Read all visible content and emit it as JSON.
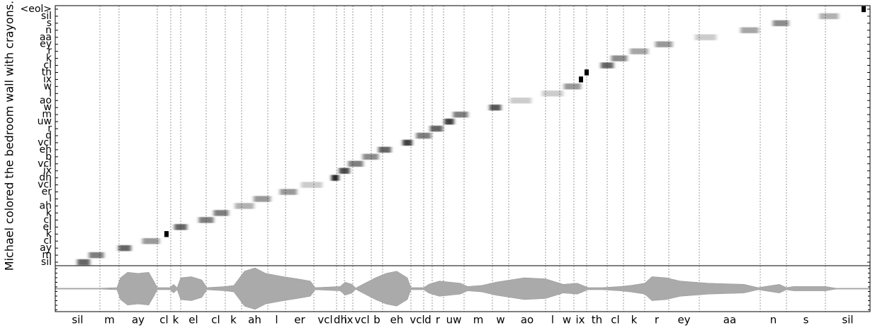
{
  "chart_data": {
    "type": "alignment",
    "ylabel": "Michael colored the bedroom wall with crayons.",
    "tokens": [
      "sil",
      "m",
      "ay",
      "cl",
      "k",
      "el",
      "cl",
      "k",
      "ah",
      "l",
      "er",
      "vcl",
      "dh",
      "ix",
      "vcl",
      "b",
      "eh",
      "vcl",
      "d",
      "r",
      "uw",
      "m",
      "w",
      "ao",
      "l",
      "w",
      "ix",
      "th",
      "cl",
      "k",
      "r",
      "ey",
      "aa",
      "n",
      "s",
      "sil",
      "<eol>"
    ],
    "attention_x": [
      40,
      58,
      98,
      135,
      157,
      177,
      213,
      234,
      267,
      292,
      329,
      362,
      395,
      408,
      424,
      445,
      465,
      497,
      520,
      538,
      556,
      572,
      621,
      657,
      702,
      730,
      742,
      750,
      779,
      796,
      824,
      859,
      918,
      980,
      1024,
      1092,
      1141
    ],
    "attention_weight": [
      0.6,
      0.5,
      0.6,
      0.4,
      1.0,
      0.6,
      0.5,
      0.5,
      0.3,
      0.4,
      0.4,
      0.2,
      0.85,
      0.7,
      0.5,
      0.45,
      0.6,
      0.75,
      0.5,
      0.6,
      0.75,
      0.5,
      0.65,
      0.2,
      0.2,
      0.4,
      1.0,
      1.0,
      0.6,
      0.45,
      0.35,
      0.4,
      0.2,
      0.35,
      0.45,
      0.3,
      1.0
    ],
    "segments": [
      "sil",
      "m",
      "ay",
      "cl",
      "k",
      "el",
      "cl",
      "k",
      "ah",
      "l",
      "er",
      "vcl",
      "dh",
      "ix",
      "vcl",
      "b",
      "eh",
      "vcl",
      "d",
      "r",
      "uw",
      "m",
      "w",
      "ao",
      "l",
      "w",
      "ix",
      "th",
      "cl",
      "k",
      "r",
      "ey",
      "aa",
      "n",
      "s",
      "sil"
    ],
    "boundaries": [
      63,
      90,
      144,
      163,
      177,
      213,
      240,
      263,
      300,
      325,
      365,
      397,
      408,
      420,
      446,
      462,
      502,
      520,
      532,
      548,
      577,
      617,
      640,
      692,
      712,
      732,
      750,
      779,
      802,
      832,
      866,
      909,
      995,
      1032,
      1087
    ],
    "xlim": [
      0,
      1150
    ],
    "waveform_x": [
      0,
      62,
      87,
      92,
      102,
      117,
      132,
      140,
      144,
      162,
      167,
      172,
      177,
      192,
      207,
      214,
      240,
      252,
      267,
      282,
      297,
      322,
      342,
      360,
      367,
      402,
      409,
      419,
      424,
      434,
      452,
      467,
      482,
      497,
      502,
      520,
      527,
      542,
      572,
      582,
      602,
      622,
      662,
      692,
      717,
      737,
      752,
      772,
      797,
      812,
      832,
      842,
      862,
      882,
      922,
      972,
      992,
      1002,
      1022,
      1032,
      1042,
      1087,
      1102,
      1150
    ],
    "waveform_amplitude": [
      0.02,
      0.02,
      0.05,
      0.5,
      0.75,
      0.7,
      0.75,
      0.3,
      0.05,
      0.05,
      0.2,
      0.05,
      0.5,
      0.55,
      0.4,
      0.05,
      0.1,
      0.15,
      0.8,
      0.95,
      0.7,
      0.55,
      0.45,
      0.35,
      0.05,
      0.1,
      0.3,
      0.2,
      0.03,
      0.2,
      0.5,
      0.7,
      0.8,
      0.5,
      0.05,
      0.05,
      0.2,
      0.35,
      0.25,
      0.1,
      0.15,
      0.3,
      0.5,
      0.45,
      0.2,
      0.25,
      0.05,
      0.05,
      0.1,
      0.15,
      0.25,
      0.55,
      0.5,
      0.35,
      0.25,
      0.2,
      0.05,
      0.1,
      0.2,
      0.05,
      0.1,
      0.1,
      0.02,
      0.02
    ]
  }
}
